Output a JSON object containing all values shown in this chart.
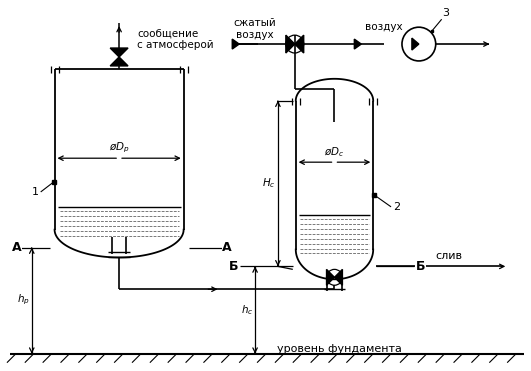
{
  "bg_color": "#ffffff",
  "line_color": "#000000",
  "fig_width": 5.31,
  "fig_height": 3.71,
  "dpi": 100,
  "texts": {
    "soobshenie": "сообщение\nс атмосферой",
    "szhatyy": "сжатый\nвоздух",
    "vozduh": "воздух",
    "sliv": "слив",
    "uroven": "уровень фундамента",
    "A_left": "А",
    "A_right": "А",
    "B_left": "Б",
    "B_right": "Б",
    "label1": "1",
    "label2": "2",
    "label3": "3",
    "Dp": "ø$D_р$",
    "Dc": "ø$D_c$",
    "Hc": "$H_c$",
    "hp": "$h_р$",
    "hc": "$h_c$"
  }
}
